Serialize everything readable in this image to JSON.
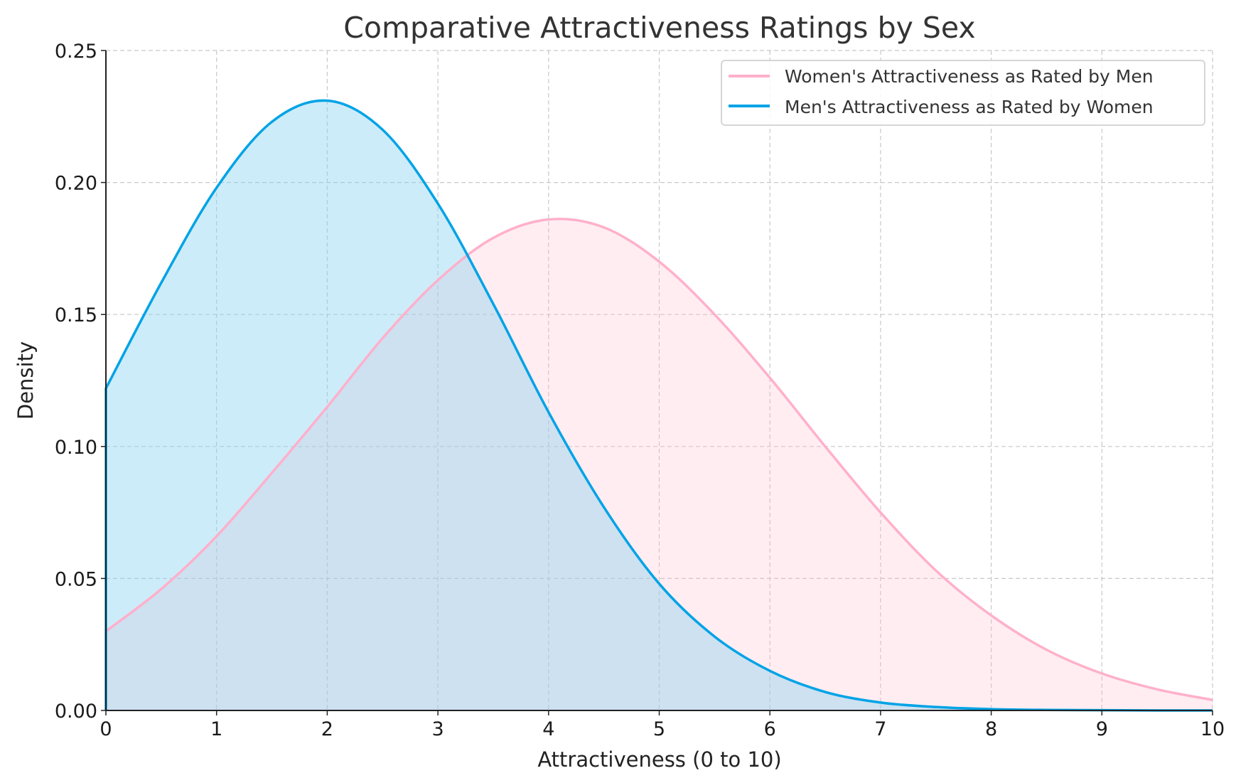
{
  "chart_data": {
    "type": "area",
    "title": "Comparative Attractiveness Ratings by Sex",
    "xlabel": "Attractiveness (0 to 10)",
    "ylabel": "Density",
    "xlim": [
      0,
      10
    ],
    "ylim": [
      0,
      0.25
    ],
    "xticks": [
      "0",
      "1",
      "2",
      "3",
      "4",
      "5",
      "6",
      "7",
      "8",
      "9",
      "10"
    ],
    "yticks": [
      "0.00",
      "0.05",
      "0.10",
      "0.15",
      "0.20",
      "0.25"
    ],
    "grid": true,
    "legend_position": "top-right",
    "x": [
      0,
      0.5,
      1,
      1.5,
      2,
      2.5,
      3,
      3.5,
      4,
      4.5,
      5,
      5.5,
      6,
      6.5,
      7,
      7.5,
      8,
      8.5,
      9,
      9.5,
      10
    ],
    "series": [
      {
        "name": "Women's Attractiveness as Rated by Men",
        "color": "#ffb0cb",
        "fill": "rgba(255,182,203,0.25)",
        "values": [
          0.03,
          0.046,
          0.066,
          0.09,
          0.115,
          0.141,
          0.163,
          0.179,
          0.186,
          0.183,
          0.17,
          0.15,
          0.126,
          0.1,
          0.075,
          0.053,
          0.036,
          0.023,
          0.014,
          0.008,
          0.004
        ]
      },
      {
        "name": "Men's Attractiveness as Rated by Women",
        "color": "#00a3e6",
        "fill": "rgba(135,210,240,0.42)",
        "values": [
          0.122,
          0.162,
          0.198,
          0.223,
          0.231,
          0.22,
          0.192,
          0.154,
          0.113,
          0.077,
          0.048,
          0.028,
          0.015,
          0.007,
          0.003,
          0.0013,
          0.0005,
          0.0002,
          0.0001,
          0.0,
          0.0
        ]
      }
    ]
  }
}
